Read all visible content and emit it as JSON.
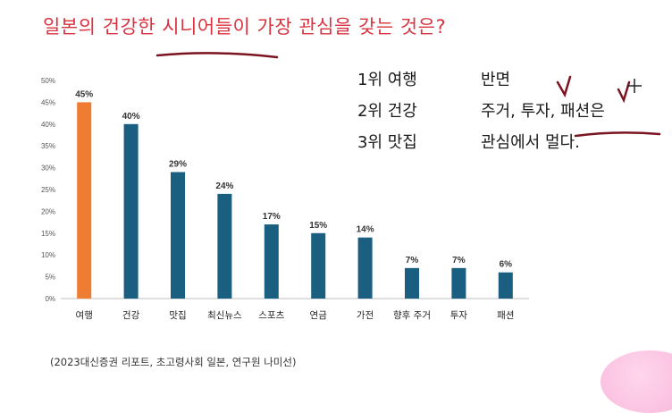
{
  "title": "일본의 건강한 시니어들이 가장 관심을 갖는 것은?",
  "notes": [
    {
      "rank": "1위 여행",
      "text": "반면"
    },
    {
      "rank": "2위 건강",
      "text": "주거, 투자, 패션은"
    },
    {
      "rank": "3위 맛집",
      "text": "관심에서 멀다."
    }
  ],
  "source": "(2023대신증권 리포트, 초고령사회 일본, 연구원 나미선)",
  "colors": {
    "highlight": "#ee7d31",
    "bar": "#1a5e80",
    "title": "#d9333f",
    "annotation": "#7a1420"
  },
  "chart_data": {
    "type": "bar",
    "categories": [
      "여행",
      "건강",
      "맛집",
      "최신뉴스",
      "스포츠",
      "연금",
      "가전",
      "향후 주거",
      "투자",
      "패션"
    ],
    "values": [
      45,
      40,
      29,
      24,
      17,
      15,
      14,
      7,
      7,
      6
    ],
    "value_labels": [
      "45%",
      "40%",
      "29%",
      "24%",
      "17%",
      "15%",
      "14%",
      "7%",
      "7%",
      "6%"
    ],
    "yticks": [
      "0%",
      "5%",
      "10%",
      "15%",
      "20%",
      "25%",
      "30%",
      "35%",
      "40%",
      "45%",
      "50%"
    ],
    "ylim": [
      0,
      50
    ],
    "grid": false,
    "highlight_index": 0
  }
}
